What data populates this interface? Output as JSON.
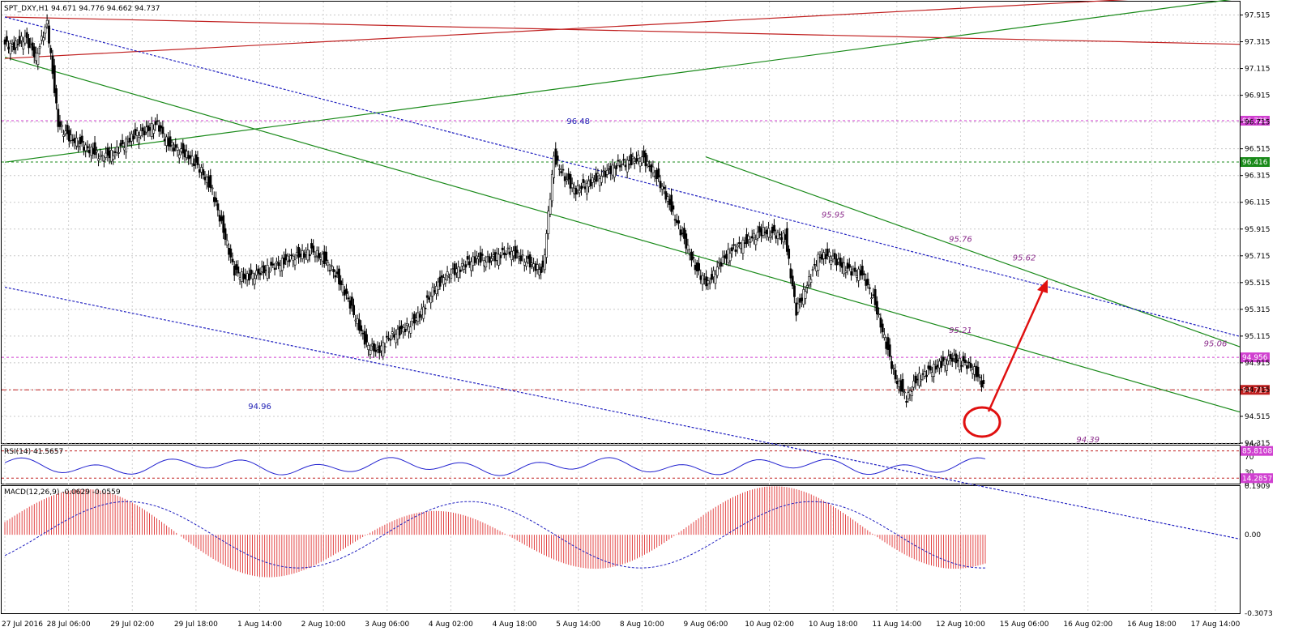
{
  "header": {
    "main_title": "SPT_DXY,H1  94.671 94.776 94.662 94.737",
    "rsi_title": "RSI(14) 41.5657",
    "macd_title": "MACD(12,26,9) -0.0629 -0.0559"
  },
  "colors": {
    "bull": "#000000",
    "bear": "#000000",
    "green_line": "#1a8a1a",
    "red_line": "#c02020",
    "blue_dotted": "#2020c0",
    "magenta_level": "#d040d0",
    "rsi_line": "#2323d0",
    "macd_hist": "#e03030",
    "macd_signal": "#2020c0",
    "arrow": "#e01010"
  },
  "chart_data": [
    {
      "type": "candlestick",
      "name": "price",
      "ylim": [
        94.315,
        97.615
      ],
      "yticks": [
        "97.515",
        "97.315",
        "97.115",
        "96.915",
        "96.715",
        "96.515",
        "96.315",
        "96.115",
        "95.915",
        "95.715",
        "95.515",
        "95.315",
        "95.115",
        "94.915",
        "94.715",
        "94.515",
        "94.315"
      ],
      "xticks": [
        "27 Jul 2016",
        "28 Jul 06:00",
        "29 Jul 02:00",
        "29 Jul 18:00",
        "1 Aug 14:00",
        "2 Aug 10:00",
        "3 Aug 06:00",
        "4 Aug 02:00",
        "4 Aug 18:00",
        "5 Aug 14:00",
        "8 Aug 10:00",
        "9 Aug 06:00",
        "10 Aug 02:00",
        "10 Aug 18:00",
        "11 Aug 14:00",
        "12 Aug 10:00",
        "15 Aug 06:00",
        "16 Aug 02:00",
        "16 Aug 18:00",
        "17 Aug 14:00"
      ],
      "price_path": [
        97.3,
        97.28,
        97.35,
        97.2,
        97.46,
        96.7,
        96.6,
        96.55,
        96.5,
        96.45,
        96.48,
        96.55,
        96.62,
        96.65,
        96.7,
        96.55,
        96.5,
        96.45,
        96.35,
        96.2,
        95.9,
        95.6,
        95.55,
        95.58,
        95.62,
        95.65,
        95.7,
        95.72,
        95.75,
        95.7,
        95.6,
        95.45,
        95.25,
        95.05,
        95.0,
        95.1,
        95.15,
        95.2,
        95.3,
        95.45,
        95.55,
        95.6,
        95.65,
        95.7,
        95.68,
        95.72,
        95.75,
        95.7,
        95.65,
        95.6,
        96.45,
        96.3,
        96.2,
        96.25,
        96.3,
        96.35,
        96.4,
        96.42,
        96.45,
        96.35,
        96.2,
        96.0,
        95.8,
        95.6,
        95.5,
        95.65,
        95.75,
        95.8,
        95.85,
        95.9,
        95.88,
        95.85,
        95.3,
        95.5,
        95.7,
        95.72,
        95.65,
        95.6,
        95.58,
        95.4,
        95.1,
        94.8,
        94.65,
        94.8,
        94.85,
        94.9,
        94.95,
        94.92,
        94.88,
        94.74
      ],
      "levels": [
        {
          "value": 96.725,
          "label": "96.725",
          "color": "magenta",
          "style": "dashed"
        },
        {
          "value": 96.416,
          "label": "96.416",
          "color": "green",
          "style": "dashed"
        },
        {
          "value": 94.956,
          "label": "94.956",
          "color": "magenta",
          "style": "dashed"
        },
        {
          "value": 94.713,
          "label": "94.713",
          "color": "red",
          "style": "dash-dot"
        }
      ],
      "annotations": [
        {
          "text": "96.48",
          "x": "5 Aug 14:00",
          "y": 96.7,
          "style": "blue"
        },
        {
          "text": "94.96",
          "x": "1 Aug 14:00",
          "y": 94.57,
          "style": "blue"
        },
        {
          "text": "95.95",
          "x": "10 Aug 18:00",
          "y": 96.0,
          "style": "purple"
        },
        {
          "text": "95.76",
          "x": "12 Aug 10:00",
          "y": 95.82,
          "style": "purple"
        },
        {
          "text": "95.62",
          "x": "15 Aug 06:00",
          "y": 95.68,
          "style": "purple"
        },
        {
          "text": "95.21",
          "x": "12 Aug 10:00",
          "y": 95.14,
          "style": "purple"
        },
        {
          "text": "95.06",
          "x": "17 Aug 14:00",
          "y": 95.04,
          "style": "purple"
        },
        {
          "text": "94.39",
          "x": "16 Aug 02:00",
          "y": 94.32,
          "style": "purple"
        }
      ],
      "trendlines": [
        {
          "name": "green-support-upper",
          "from": [
            "27 Jul 2016",
            96.415
          ],
          "to": [
            "17 Aug 14:00",
            97.615
          ],
          "color": "green"
        },
        {
          "name": "green-channel-top",
          "from": [
            "27 Jul 2016",
            97.2
          ],
          "to": [
            "17 Aug 14:00",
            94.6
          ],
          "color": "green"
        },
        {
          "name": "green-channel-bottom",
          "from": [
            "9 Aug 06:00",
            96.455
          ],
          "to": [
            "17 Aug 14:00",
            95.1
          ],
          "color": "green"
        },
        {
          "name": "red-top-1",
          "from": [
            "27 Jul 2016",
            97.19
          ],
          "to": [
            "16 Aug 02:00",
            97.615
          ],
          "color": "red"
        },
        {
          "name": "red-top-2",
          "from": [
            "27 Jul 2016",
            97.5
          ],
          "to": [
            "17 Aug 14:00",
            97.3
          ],
          "color": "red"
        },
        {
          "name": "blue-dotted-upper",
          "from": [
            "27 Jul 2016",
            97.5
          ],
          "to": [
            "17 Aug 14:00",
            95.16
          ],
          "color": "blue"
        },
        {
          "name": "blue-dotted-lower",
          "from": [
            "27 Jul 2016",
            95.48
          ],
          "to": [
            "10 Aug 02:00",
            94.315
          ],
          "color": "blue"
        }
      ]
    },
    {
      "type": "line",
      "name": "RSI(14)",
      "ylim": [
        0,
        100
      ],
      "yticks": [
        "100",
        "70",
        "30",
        "0"
      ],
      "levels": [
        {
          "value": 85.8108,
          "label": "85.8108"
        },
        {
          "value": 14.2857,
          "label": "14.2857"
        }
      ],
      "last_value": 41.5657
    },
    {
      "type": "bar",
      "name": "MACD(12,26,9)",
      "ylim": [
        -0.3073,
        0.1909
      ],
      "yticks": [
        "0.1909",
        "0.00",
        "-0.3073"
      ],
      "macd": -0.0629,
      "signal": -0.0559
    }
  ]
}
